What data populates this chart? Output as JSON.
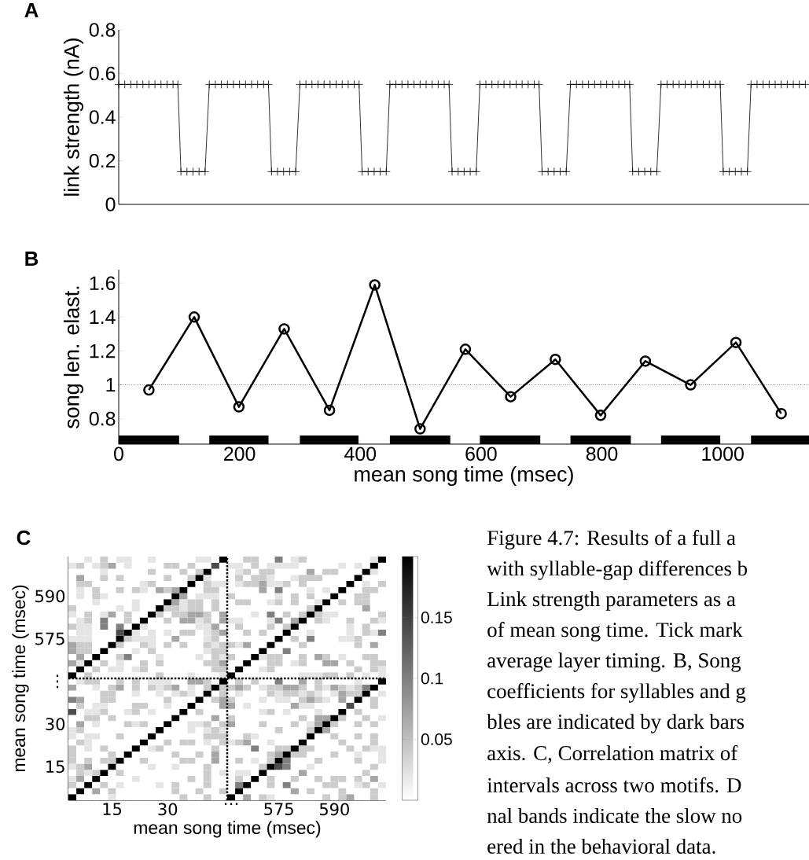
{
  "chart_data": [
    {
      "type": "line",
      "title": "A",
      "ylabel": "link strength (nA)",
      "xlim": [
        0,
        1143
      ],
      "ylim": [
        0,
        0.8
      ],
      "yticks": [
        0,
        0.2,
        0.4,
        0.6,
        0.8
      ],
      "tick_labels": "y",
      "marker": "cross",
      "series": [
        {
          "color": "#000000",
          "x": [
            0,
            10,
            20,
            30,
            40,
            50,
            60,
            70,
            80,
            90,
            98,
            103,
            113,
            123,
            133,
            143,
            150,
            160,
            170,
            180,
            190,
            200,
            210,
            220,
            230,
            240,
            248,
            253,
            263,
            273,
            283,
            293,
            300,
            310,
            320,
            330,
            340,
            350,
            360,
            370,
            380,
            390,
            398,
            403,
            413,
            423,
            433,
            443,
            449,
            459,
            469,
            479,
            489,
            499,
            509,
            519,
            529,
            539,
            547,
            552,
            562,
            572,
            582,
            592,
            598,
            608,
            618,
            628,
            638,
            648,
            658,
            668,
            678,
            688,
            696,
            701,
            711,
            721,
            731,
            741,
            748,
            758,
            768,
            778,
            788,
            798,
            808,
            818,
            828,
            838,
            846,
            851,
            861,
            871,
            881,
            891,
            898,
            908,
            918,
            928,
            938,
            948,
            958,
            968,
            978,
            988,
            996,
            1001,
            1011,
            1021,
            1031,
            1041,
            1047,
            1057,
            1067,
            1077,
            1087,
            1097,
            1107,
            1117,
            1127,
            1137
          ],
          "values": [
            0.55,
            0.55,
            0.55,
            0.55,
            0.55,
            0.55,
            0.55,
            0.55,
            0.55,
            0.55,
            0.55,
            0.15,
            0.15,
            0.15,
            0.15,
            0.15,
            0.55,
            0.55,
            0.55,
            0.55,
            0.55,
            0.55,
            0.55,
            0.55,
            0.55,
            0.55,
            0.55,
            0.15,
            0.15,
            0.15,
            0.15,
            0.15,
            0.55,
            0.55,
            0.55,
            0.55,
            0.55,
            0.55,
            0.55,
            0.55,
            0.55,
            0.55,
            0.55,
            0.15,
            0.15,
            0.15,
            0.15,
            0.15,
            0.55,
            0.55,
            0.55,
            0.55,
            0.55,
            0.55,
            0.55,
            0.55,
            0.55,
            0.55,
            0.55,
            0.15,
            0.15,
            0.15,
            0.15,
            0.15,
            0.55,
            0.55,
            0.55,
            0.55,
            0.55,
            0.55,
            0.55,
            0.55,
            0.55,
            0.55,
            0.55,
            0.15,
            0.15,
            0.15,
            0.15,
            0.15,
            0.55,
            0.55,
            0.55,
            0.55,
            0.55,
            0.55,
            0.55,
            0.55,
            0.55,
            0.55,
            0.55,
            0.15,
            0.15,
            0.15,
            0.15,
            0.15,
            0.55,
            0.55,
            0.55,
            0.55,
            0.55,
            0.55,
            0.55,
            0.55,
            0.55,
            0.55,
            0.55,
            0.15,
            0.15,
            0.15,
            0.15,
            0.15,
            0.55,
            0.55,
            0.55,
            0.55,
            0.55,
            0.55,
            0.55,
            0.55,
            0.55,
            0.55
          ]
        }
      ]
    },
    {
      "type": "line",
      "title": "B",
      "xlabel": "mean song time (msec)",
      "ylabel": "song len. elast.",
      "xlim": [
        0,
        1143
      ],
      "ylim": [
        0.65,
        1.68
      ],
      "xticks": [
        0,
        200,
        400,
        600,
        800,
        1000
      ],
      "yticks": [
        0.8,
        1,
        1.2,
        1.4,
        1.6
      ],
      "marker": "circle",
      "series": [
        {
          "color": "#000000",
          "x": [
            50,
            125,
            199,
            274,
            349,
            424,
            499,
            574,
            649,
            723,
            798,
            872,
            947,
            1022,
            1097
          ],
          "values": [
            0.97,
            1.4,
            0.87,
            1.33,
            0.85,
            1.59,
            0.74,
            1.21,
            0.93,
            1.15,
            0.82,
            1.14,
            1.0,
            1.25,
            0.83
          ]
        }
      ],
      "ref_lines": [
        {
          "axis": "y",
          "value": 1,
          "line_style": "dotted"
        }
      ],
      "bands": [
        {
          "axis": "x",
          "from": 0,
          "to": 100,
          "color": "#000000"
        },
        {
          "axis": "x",
          "from": 150,
          "to": 248,
          "color": "#000000"
        },
        {
          "axis": "x",
          "from": 300,
          "to": 397,
          "color": "#000000"
        },
        {
          "axis": "x",
          "from": 449,
          "to": 549,
          "color": "#000000"
        },
        {
          "axis": "x",
          "from": 598,
          "to": 698,
          "color": "#000000"
        },
        {
          "axis": "x",
          "from": 748,
          "to": 848,
          "color": "#000000"
        },
        {
          "axis": "x",
          "from": 898,
          "to": 996,
          "color": "#000000"
        },
        {
          "axis": "x",
          "from": 1047,
          "to": 1143,
          "color": "#000000"
        }
      ]
    },
    {
      "type": "heatmap",
      "title": "C",
      "xlabel": "mean song time (msec)",
      "ylabel": "mean song time (msec)",
      "categories": [
        null,
        null,
        null,
        null,
        null,
        "15",
        null,
        null,
        null,
        null,
        null,
        null,
        "30",
        null,
        null,
        null,
        null,
        null,
        null,
        null,
        "⋯",
        null,
        null,
        null,
        null,
        null,
        "575",
        null,
        null,
        null,
        null,
        null,
        null,
        "590",
        null,
        null,
        null,
        null,
        null,
        null
      ],
      "y_categories": [
        null,
        null,
        null,
        null,
        null,
        null,
        "590",
        null,
        null,
        null,
        null,
        null,
        null,
        "575",
        null,
        null,
        null,
        null,
        null,
        null,
        "⋮",
        null,
        null,
        null,
        null,
        null,
        null,
        "30",
        null,
        null,
        null,
        null,
        null,
        null,
        "15",
        null,
        null,
        null,
        null,
        null
      ],
      "clim": [
        0,
        0.2
      ],
      "cticks": [
        0.05,
        0.1,
        0.15
      ],
      "cells": [
        [
          0,
          0,
          0.02,
          0,
          0.04,
          0,
          0.02,
          0.02,
          0,
          0,
          0.02,
          0,
          0,
          0,
          0,
          0,
          0.02,
          0.02,
          0,
          0.2,
          0,
          0,
          0.04,
          0.04,
          0,
          0,
          0.1,
          0,
          0.02,
          0.04,
          0,
          0,
          0,
          0,
          0,
          0,
          0,
          0,
          0.02,
          0.2
        ],
        [
          0.02,
          0.04,
          0,
          0.02,
          0.04,
          0.07,
          0,
          0.02,
          0,
          0,
          0,
          0,
          0.04,
          0.04,
          0,
          0.04,
          0,
          0,
          0.14,
          0,
          0.02,
          0.02,
          0,
          0.04,
          0,
          0.02,
          0.02,
          0.02,
          0.02,
          0,
          0,
          0,
          0,
          0,
          0.02,
          0,
          0.02,
          0,
          0.2,
          0
        ],
        [
          0,
          0,
          0,
          0,
          0.02,
          0,
          0,
          0,
          0,
          0,
          0.04,
          0,
          0,
          0,
          0.04,
          0,
          0.04,
          0.2,
          0,
          0,
          0,
          0.02,
          0.04,
          0,
          0.04,
          0.04,
          0,
          0,
          0,
          0,
          0.07,
          0,
          0.04,
          0.04,
          0,
          0,
          0,
          0.2,
          0.02,
          0
        ],
        [
          0,
          0.07,
          0,
          0,
          0.04,
          0,
          0.04,
          0,
          0,
          0,
          0,
          0,
          0.04,
          0,
          0,
          0.04,
          0.2,
          0.02,
          0,
          0,
          0,
          0.04,
          0,
          0.04,
          0.04,
          0.02,
          0,
          0,
          0.02,
          0.04,
          0.04,
          0.04,
          0,
          0,
          0,
          0,
          0.2,
          0,
          0,
          0
        ],
        [
          0,
          0.04,
          0.04,
          0,
          0,
          0,
          0,
          0,
          0,
          0.02,
          0.04,
          0,
          0,
          0,
          0,
          0.2,
          0,
          0.04,
          0.02,
          0.02,
          0,
          0.02,
          0.04,
          0.04,
          0.07,
          0.02,
          0.02,
          0.04,
          0,
          0.04,
          0,
          0,
          0,
          0,
          0,
          0.2,
          0,
          0.02,
          0,
          0.04
        ],
        [
          0,
          0.02,
          0,
          0.04,
          0,
          0,
          0.04,
          0,
          0.04,
          0.02,
          0,
          0.07,
          0.04,
          0.07,
          0.2,
          0,
          0,
          0.04,
          0.04,
          0,
          0,
          0,
          0,
          0,
          0.07,
          0,
          0.1,
          0,
          0,
          0,
          0.02,
          0,
          0.02,
          0,
          0.2,
          0,
          0,
          0.04,
          0.04,
          0
        ],
        [
          0,
          0.02,
          0,
          0.04,
          0.02,
          0,
          0,
          0,
          0,
          0,
          0,
          0,
          0,
          0.2,
          0.07,
          0,
          0.02,
          0.02,
          0.02,
          0,
          0.04,
          0,
          0,
          0,
          0,
          0,
          0.02,
          0,
          0.04,
          0,
          0.04,
          0,
          0,
          0.2,
          0,
          0,
          0.04,
          0.04,
          0,
          0
        ],
        [
          0,
          0,
          0,
          0.02,
          0,
          0,
          0,
          0,
          0.02,
          0,
          0,
          0,
          0.2,
          0.07,
          0.02,
          0.04,
          0.04,
          0,
          0.04,
          0,
          0,
          0.04,
          0.04,
          0,
          0,
          0.02,
          0.04,
          0,
          0.04,
          0,
          0,
          0.02,
          0.2,
          0,
          0.04,
          0,
          0.04,
          0.04,
          0,
          0
        ],
        [
          0.04,
          0,
          0,
          0,
          0,
          0,
          0.02,
          0,
          0.02,
          0,
          0,
          0.2,
          0.04,
          0.04,
          0.02,
          0.04,
          0.04,
          0,
          0.04,
          0,
          0,
          0,
          0,
          0,
          0,
          0,
          0,
          0,
          0,
          0,
          0.04,
          0.2,
          0,
          0,
          0,
          0,
          0,
          0.07,
          0,
          0
        ],
        [
          0.02,
          0,
          0.04,
          0,
          0.02,
          0.07,
          0,
          0.04,
          0,
          0,
          0.2,
          0.04,
          0,
          0.04,
          0.04,
          0.07,
          0.07,
          0.04,
          0,
          0.07,
          0,
          0,
          0,
          0.02,
          0,
          0.1,
          0,
          0.04,
          0,
          0.04,
          0.2,
          0.04,
          0.02,
          0.02,
          0,
          0,
          0,
          0,
          0,
          0.04
        ],
        [
          0,
          0.02,
          0.04,
          0,
          0.1,
          0,
          0,
          0.04,
          0,
          0.2,
          0,
          0,
          0.04,
          0,
          0.07,
          0.07,
          0.02,
          0.04,
          0,
          0.07,
          0.02,
          0.02,
          0,
          0,
          0,
          0.02,
          0.1,
          0,
          0.07,
          0.2,
          0,
          0.04,
          0.02,
          0,
          0,
          0.04,
          0,
          0,
          0.04,
          0.02
        ],
        [
          0.04,
          0.02,
          0.02,
          0,
          0.1,
          0,
          0.1,
          0,
          0.2,
          0.02,
          0,
          0,
          0,
          0,
          0,
          0,
          0.02,
          0.02,
          0.07,
          0,
          0,
          0.04,
          0,
          0,
          0,
          0.04,
          0,
          0.04,
          0.2,
          0,
          0,
          0,
          0,
          0,
          0,
          0.02,
          0,
          0.04,
          0,
          0
        ],
        [
          0,
          0.02,
          0.02,
          0,
          0,
          0,
          0.14,
          0.2,
          0.02,
          0,
          0.02,
          0,
          0.02,
          0,
          0.04,
          0.04,
          0,
          0.02,
          0.04,
          0.07,
          0,
          0,
          0.04,
          0,
          0.04,
          0,
          0,
          0.2,
          0,
          0,
          0.02,
          0,
          0,
          0,
          0,
          0.02,
          0,
          0.04,
          0.02,
          0.1
        ],
        [
          0.02,
          0.02,
          0.02,
          0,
          0,
          0,
          0.2,
          0.04,
          0.02,
          0.02,
          0.02,
          0,
          0,
          0.07,
          0,
          0,
          0,
          0.02,
          0.04,
          0,
          0,
          0,
          0,
          0,
          0,
          0,
          0.2,
          0,
          0.04,
          0,
          0.1,
          0,
          0,
          0,
          0.02,
          0.02,
          0.04,
          0,
          0,
          0
        ],
        [
          0.07,
          0.04,
          0.04,
          0,
          0,
          0.2,
          0.04,
          0,
          0,
          0.04,
          0.02,
          0,
          0.04,
          0,
          0.04,
          0,
          0,
          0.04,
          0.02,
          0.04,
          0.04,
          0.02,
          0.07,
          0,
          0,
          0.2,
          0,
          0,
          0,
          0.04,
          0,
          0,
          0,
          0,
          0,
          0,
          0.04,
          0,
          0.07,
          0
        ],
        [
          0.07,
          0.04,
          0.04,
          0,
          0.2,
          0,
          0,
          0,
          0.02,
          0,
          0.04,
          0,
          0,
          0,
          0,
          0,
          0,
          0.02,
          0.04,
          0.04,
          0,
          0,
          0,
          0,
          0.2,
          0,
          0,
          0.1,
          0,
          0,
          0,
          0,
          0,
          0,
          0,
          0,
          0,
          0,
          0,
          0
        ],
        [
          0,
          0.07,
          0,
          0.2,
          0,
          0,
          0.04,
          0.1,
          0,
          0,
          0,
          0.02,
          0,
          0,
          0,
          0,
          0.02,
          0,
          0.04,
          0.02,
          0.04,
          0,
          0,
          0.2,
          0.02,
          0.04,
          0.04,
          0,
          0,
          0.04,
          0,
          0.07,
          0.04,
          0,
          0.02,
          0,
          0,
          0.04,
          0.04,
          0
        ],
        [
          0.07,
          0.02,
          0.2,
          0,
          0.04,
          0,
          0.02,
          0,
          0,
          0.04,
          0,
          0.04,
          0,
          0,
          0,
          0,
          0,
          0.04,
          0.04,
          0.07,
          0,
          0,
          0.2,
          0,
          0,
          0.04,
          0.04,
          0,
          0.02,
          0.04,
          0,
          0,
          0.07,
          0.07,
          0,
          0.04,
          0,
          0,
          0.04,
          0.04
        ],
        [
          0,
          0.2,
          0,
          0.04,
          0,
          0.02,
          0.02,
          0,
          0.02,
          0.04,
          0,
          0,
          0,
          0,
          0,
          0,
          0,
          0,
          0.04,
          0.04,
          0,
          0.2,
          0,
          0,
          0.02,
          0.04,
          0,
          0,
          0,
          0,
          0,
          0,
          0,
          0,
          0,
          0,
          0.04,
          0,
          0.04,
          0.02
        ],
        [
          0.2,
          0,
          0.04,
          0,
          0,
          0,
          0,
          0,
          0,
          0,
          0,
          0.04,
          0,
          0,
          0,
          0.02,
          0,
          0,
          0,
          0.02,
          0.2,
          0,
          0,
          0,
          0,
          0,
          0,
          0,
          0,
          0.02,
          0.02,
          0.02,
          0.04,
          0.04,
          0,
          0.04,
          0,
          0.02,
          0,
          0.02
        ],
        [
          0,
          0.02,
          0.04,
          0.04,
          0,
          0,
          0.04,
          0,
          0.04,
          0,
          0.02,
          0.02,
          0.02,
          0,
          0,
          0.07,
          0.07,
          0.04,
          0,
          0.2,
          0,
          0.04,
          0,
          0.04,
          0,
          0,
          0.1,
          0,
          0,
          0.07,
          0,
          0.04,
          0,
          0,
          0,
          0,
          0.02,
          0,
          0,
          0.2
        ],
        [
          0.07,
          0,
          0,
          0.02,
          0,
          0.04,
          0.07,
          0,
          0.04,
          0,
          0.04,
          0.02,
          0.04,
          0.07,
          0,
          0.02,
          0,
          0.04,
          0.2,
          0.04,
          0.04,
          0.07,
          0.04,
          0,
          0.02,
          0.04,
          0.04,
          0.07,
          0.07,
          0.04,
          0,
          0.04,
          0.02,
          0.07,
          0.04,
          0.02,
          0.04,
          0.1,
          0.2,
          0
        ],
        [
          0,
          0,
          0,
          0,
          0.04,
          0.04,
          0,
          0,
          0.02,
          0,
          0,
          0.02,
          0,
          0.02,
          0.04,
          0.02,
          0,
          0.2,
          0,
          0.04,
          0,
          0.02,
          0,
          0,
          0,
          0.04,
          0.02,
          0.04,
          0.04,
          0.02,
          0.04,
          0.02,
          0,
          0.02,
          0.07,
          0.04,
          0.04,
          0.2,
          0,
          0.02
        ],
        [
          0.1,
          0.07,
          0,
          0,
          0.04,
          0.04,
          0,
          0,
          0,
          0,
          0,
          0,
          0.04,
          0,
          0,
          0,
          0.2,
          0,
          0.04,
          0.07,
          0.04,
          0,
          0,
          0,
          0.02,
          0,
          0.02,
          0.02,
          0,
          0.04,
          0.07,
          0.04,
          0.02,
          0,
          0.07,
          0,
          0.2,
          0,
          0.04,
          0
        ],
        [
          0,
          0.04,
          0,
          0.02,
          0.02,
          0,
          0,
          0,
          0.04,
          0.04,
          0,
          0,
          0.02,
          0,
          0,
          0.2,
          0,
          0,
          0,
          0.07,
          0.07,
          0,
          0.02,
          0,
          0,
          0,
          0,
          0,
          0.07,
          0.02,
          0.02,
          0,
          0,
          0,
          0,
          0.14,
          0,
          0,
          0.04,
          0
        ],
        [
          0.14,
          0,
          0.02,
          0.02,
          0.04,
          0,
          0,
          0.02,
          0.04,
          0,
          0.02,
          0,
          0,
          0,
          0.2,
          0,
          0.04,
          0,
          0,
          0,
          0,
          0,
          0,
          0,
          0.02,
          0.04,
          0,
          0.02,
          0,
          0,
          0,
          0.02,
          0,
          0,
          0.2,
          0,
          0.04,
          0,
          0,
          0
        ],
        [
          0,
          0,
          0.04,
          0.04,
          0,
          0.04,
          0,
          0,
          0,
          0,
          0,
          0,
          0,
          0.2,
          0,
          0,
          0,
          0,
          0.07,
          0,
          0.04,
          0,
          0,
          0,
          0,
          0,
          0,
          0,
          0,
          0.04,
          0,
          0.07,
          0.07,
          0.2,
          0.04,
          0,
          0,
          0.04,
          0,
          0.02
        ],
        [
          0,
          0.07,
          0,
          0.02,
          0,
          0,
          0,
          0.04,
          0.02,
          0.04,
          0,
          0,
          0.2,
          0,
          0,
          0.02,
          0.02,
          0.04,
          0,
          0.04,
          0.07,
          0,
          0,
          0,
          0.04,
          0,
          0,
          0,
          0.04,
          0,
          0.02,
          0.07,
          0.2,
          0.04,
          0,
          0,
          0.04,
          0,
          0.04,
          0
        ],
        [
          0.02,
          0.04,
          0,
          0,
          0,
          0,
          0,
          0,
          0,
          0,
          0,
          0.2,
          0,
          0,
          0,
          0.02,
          0,
          0.02,
          0.04,
          0.02,
          0,
          0,
          0,
          0,
          0,
          0,
          0.04,
          0,
          0,
          0,
          0.04,
          0.2,
          0.07,
          0,
          0,
          0,
          0,
          0,
          0,
          0
        ],
        [
          0.02,
          0,
          0.02,
          0.02,
          0,
          0,
          0.04,
          0,
          0,
          0,
          0.2,
          0,
          0,
          0,
          0,
          0,
          0,
          0.04,
          0.04,
          0.04,
          0,
          0,
          0.04,
          0.02,
          0,
          0,
          0,
          0,
          0,
          0,
          0.2,
          0,
          0,
          0.04,
          0,
          0,
          0.04,
          0,
          0.04,
          0
        ],
        [
          0,
          0.04,
          0.02,
          0,
          0,
          0,
          0,
          0,
          0,
          0.2,
          0,
          0,
          0.04,
          0,
          0.04,
          0.04,
          0,
          0.02,
          0,
          0.04,
          0.02,
          0.04,
          0.07,
          0,
          0,
          0.02,
          0,
          0,
          0,
          0.2,
          0,
          0,
          0,
          0,
          0.04,
          0,
          0,
          0,
          0.04,
          0
        ],
        [
          0.04,
          0,
          0.02,
          0,
          0.04,
          0,
          0,
          0,
          0.2,
          0,
          0.02,
          0.04,
          0,
          0,
          0,
          0,
          0,
          0,
          0.04,
          0,
          0,
          0,
          0,
          0.1,
          0,
          0,
          0.04,
          0.04,
          0.2,
          0.04,
          0.04,
          0,
          0,
          0,
          0,
          0.04,
          0,
          0.04,
          0.02,
          0.02
        ],
        [
          0.04,
          0,
          0,
          0,
          0,
          0.04,
          0,
          0.2,
          0,
          0,
          0,
          0,
          0,
          0.04,
          0,
          0,
          0.04,
          0,
          0.07,
          0,
          0,
          0,
          0,
          0,
          0,
          0.04,
          0.07,
          0.2,
          0.04,
          0.04,
          0,
          0,
          0,
          0.04,
          0,
          0,
          0.02,
          0,
          0,
          0.02
        ],
        [
          0.04,
          0,
          0.04,
          0,
          0.04,
          0.04,
          0.2,
          0,
          0,
          0.04,
          0,
          0,
          0,
          0,
          0.04,
          0.04,
          0,
          0,
          0.07,
          0,
          0,
          0.04,
          0,
          0.02,
          0,
          0.04,
          0.2,
          0.1,
          0,
          0,
          0,
          0.04,
          0,
          0,
          0,
          0,
          0.04,
          0,
          0,
          0.02
        ],
        [
          0.02,
          0.04,
          0.07,
          0,
          0,
          0.2,
          0,
          0,
          0,
          0,
          0.02,
          0,
          0,
          0.02,
          0,
          0,
          0,
          0.04,
          0,
          0,
          0,
          0,
          0,
          0,
          0.04,
          0.2,
          0.14,
          0.1,
          0,
          0,
          0.02,
          0,
          0,
          0,
          0,
          0,
          0,
          0,
          0.04,
          0
        ],
        [
          0,
          0.04,
          0.02,
          0.04,
          0.2,
          0,
          0.04,
          0,
          0,
          0,
          0,
          0,
          0,
          0,
          0,
          0,
          0,
          0.04,
          0,
          0.02,
          0,
          0.02,
          0.02,
          0,
          0.2,
          0,
          0,
          0,
          0,
          0.07,
          0,
          0,
          0,
          0,
          0,
          0,
          0,
          0.04,
          0,
          0
        ],
        [
          0.02,
          0.07,
          0,
          0.2,
          0,
          0,
          0,
          0,
          0.02,
          0,
          0,
          0,
          0,
          0,
          0,
          0.04,
          0,
          0.04,
          0,
          0,
          0,
          0.04,
          0,
          0.2,
          0,
          0.04,
          0,
          0,
          0.04,
          0,
          0,
          0.04,
          0,
          0.04,
          0.04,
          0,
          0.04,
          0,
          0.07,
          0
        ],
        [
          0.04,
          0,
          0.2,
          0,
          0.04,
          0,
          0.02,
          0,
          0,
          0,
          0,
          0.02,
          0,
          0.04,
          0,
          0,
          0,
          0.04,
          0,
          0,
          0,
          0.1,
          0.2,
          0,
          0,
          0.04,
          0,
          0.1,
          0,
          0,
          0,
          0,
          0.04,
          0.04,
          0,
          0,
          0.02,
          0.04,
          0,
          0.02
        ],
        [
          0,
          0.2,
          0,
          0.07,
          0,
          0.04,
          0,
          0,
          0,
          0,
          0,
          0,
          0,
          0.04,
          0,
          0,
          0.04,
          0,
          0,
          0.04,
          0,
          0.2,
          0,
          0,
          0,
          0,
          0,
          0,
          0.07,
          0,
          0.04,
          0,
          0,
          0,
          0.04,
          0,
          0,
          0,
          0.04,
          0
        ],
        [
          0.2,
          0,
          0,
          0,
          0,
          0.02,
          0,
          0,
          0,
          0,
          0,
          0,
          0,
          0,
          0.04,
          0,
          0,
          0.04,
          0,
          0,
          0.2,
          0,
          0.07,
          0,
          0.04,
          0.02,
          0,
          0,
          0,
          0,
          0,
          0,
          0.04,
          0,
          0.04,
          0.07,
          0,
          0,
          0.04,
          0
        ]
      ]
    },
    {
      "type": "other",
      "annotations": [
        "Figure 4.7: Results of a full a",
        "with syllable-gap differences b",
        "Link strength parameters as a",
        "of mean song time. Tick mark",
        "average layer timing. B, Song",
        "coefficients for syllables and g",
        "bles are indicated by dark bars",
        "axis. C, Correlation matrix of",
        "intervals across two motifs. D",
        "nal bands indicate the slow no",
        "ered in the behavioral data."
      ]
    }
  ]
}
